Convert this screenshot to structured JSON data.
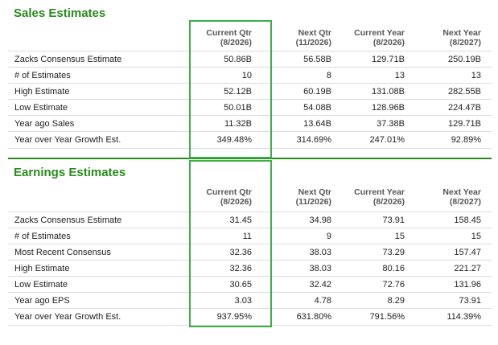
{
  "colors": {
    "accent": "#2a8a1d",
    "highlight": "#3cb043"
  },
  "sales": {
    "title": "Sales Estimates",
    "headers": [
      {
        "l1": "Current Qtr",
        "l2": "(8/2026)"
      },
      {
        "l1": "Next Qtr",
        "l2": "(11/2026)"
      },
      {
        "l1": "Current Year",
        "l2": "(8/2026)"
      },
      {
        "l1": "Next Year",
        "l2": "(8/2027)"
      }
    ],
    "rows": [
      {
        "label": "Zacks Consensus Estimate",
        "v": [
          "50.86B",
          "56.58B",
          "129.71B",
          "250.19B"
        ]
      },
      {
        "label": "# of Estimates",
        "v": [
          "10",
          "8",
          "13",
          "13"
        ]
      },
      {
        "label": "High Estimate",
        "v": [
          "52.12B",
          "60.19B",
          "131.08B",
          "282.55B"
        ]
      },
      {
        "label": "Low Estimate",
        "v": [
          "50.01B",
          "54.08B",
          "128.96B",
          "224.47B"
        ]
      },
      {
        "label": "Year ago Sales",
        "v": [
          "11.32B",
          "13.64B",
          "37.38B",
          "129.71B"
        ]
      },
      {
        "label": "Year over Year Growth Est.",
        "v": [
          "349.48%",
          "314.69%",
          "247.01%",
          "92.89%"
        ]
      }
    ]
  },
  "earnings": {
    "title": "Earnings Estimates",
    "headers": [
      {
        "l1": "Current Qtr",
        "l2": "(8/2026)"
      },
      {
        "l1": "Next Qtr",
        "l2": "(11/2026)"
      },
      {
        "l1": "Current Year",
        "l2": "(8/2026)"
      },
      {
        "l1": "Next Year",
        "l2": "(8/2027)"
      }
    ],
    "rows": [
      {
        "label": "Zacks Consensus Estimate",
        "v": [
          "31.45",
          "34.98",
          "73.91",
          "158.45"
        ]
      },
      {
        "label": "# of Estimates",
        "v": [
          "11",
          "9",
          "15",
          "15"
        ]
      },
      {
        "label": "Most Recent Consensus",
        "v": [
          "32.36",
          "38.03",
          "73.29",
          "157.47"
        ]
      },
      {
        "label": "High Estimate",
        "v": [
          "32.36",
          "38.03",
          "80.16",
          "221.27"
        ]
      },
      {
        "label": "Low Estimate",
        "v": [
          "30.65",
          "32.42",
          "72.76",
          "131.96"
        ]
      },
      {
        "label": "Year ago EPS",
        "v": [
          "3.03",
          "4.78",
          "8.29",
          "73.91"
        ]
      },
      {
        "label": "Year over Year Growth Est.",
        "v": [
          "937.95%",
          "631.80%",
          "791.56%",
          "114.39%"
        ]
      }
    ]
  }
}
